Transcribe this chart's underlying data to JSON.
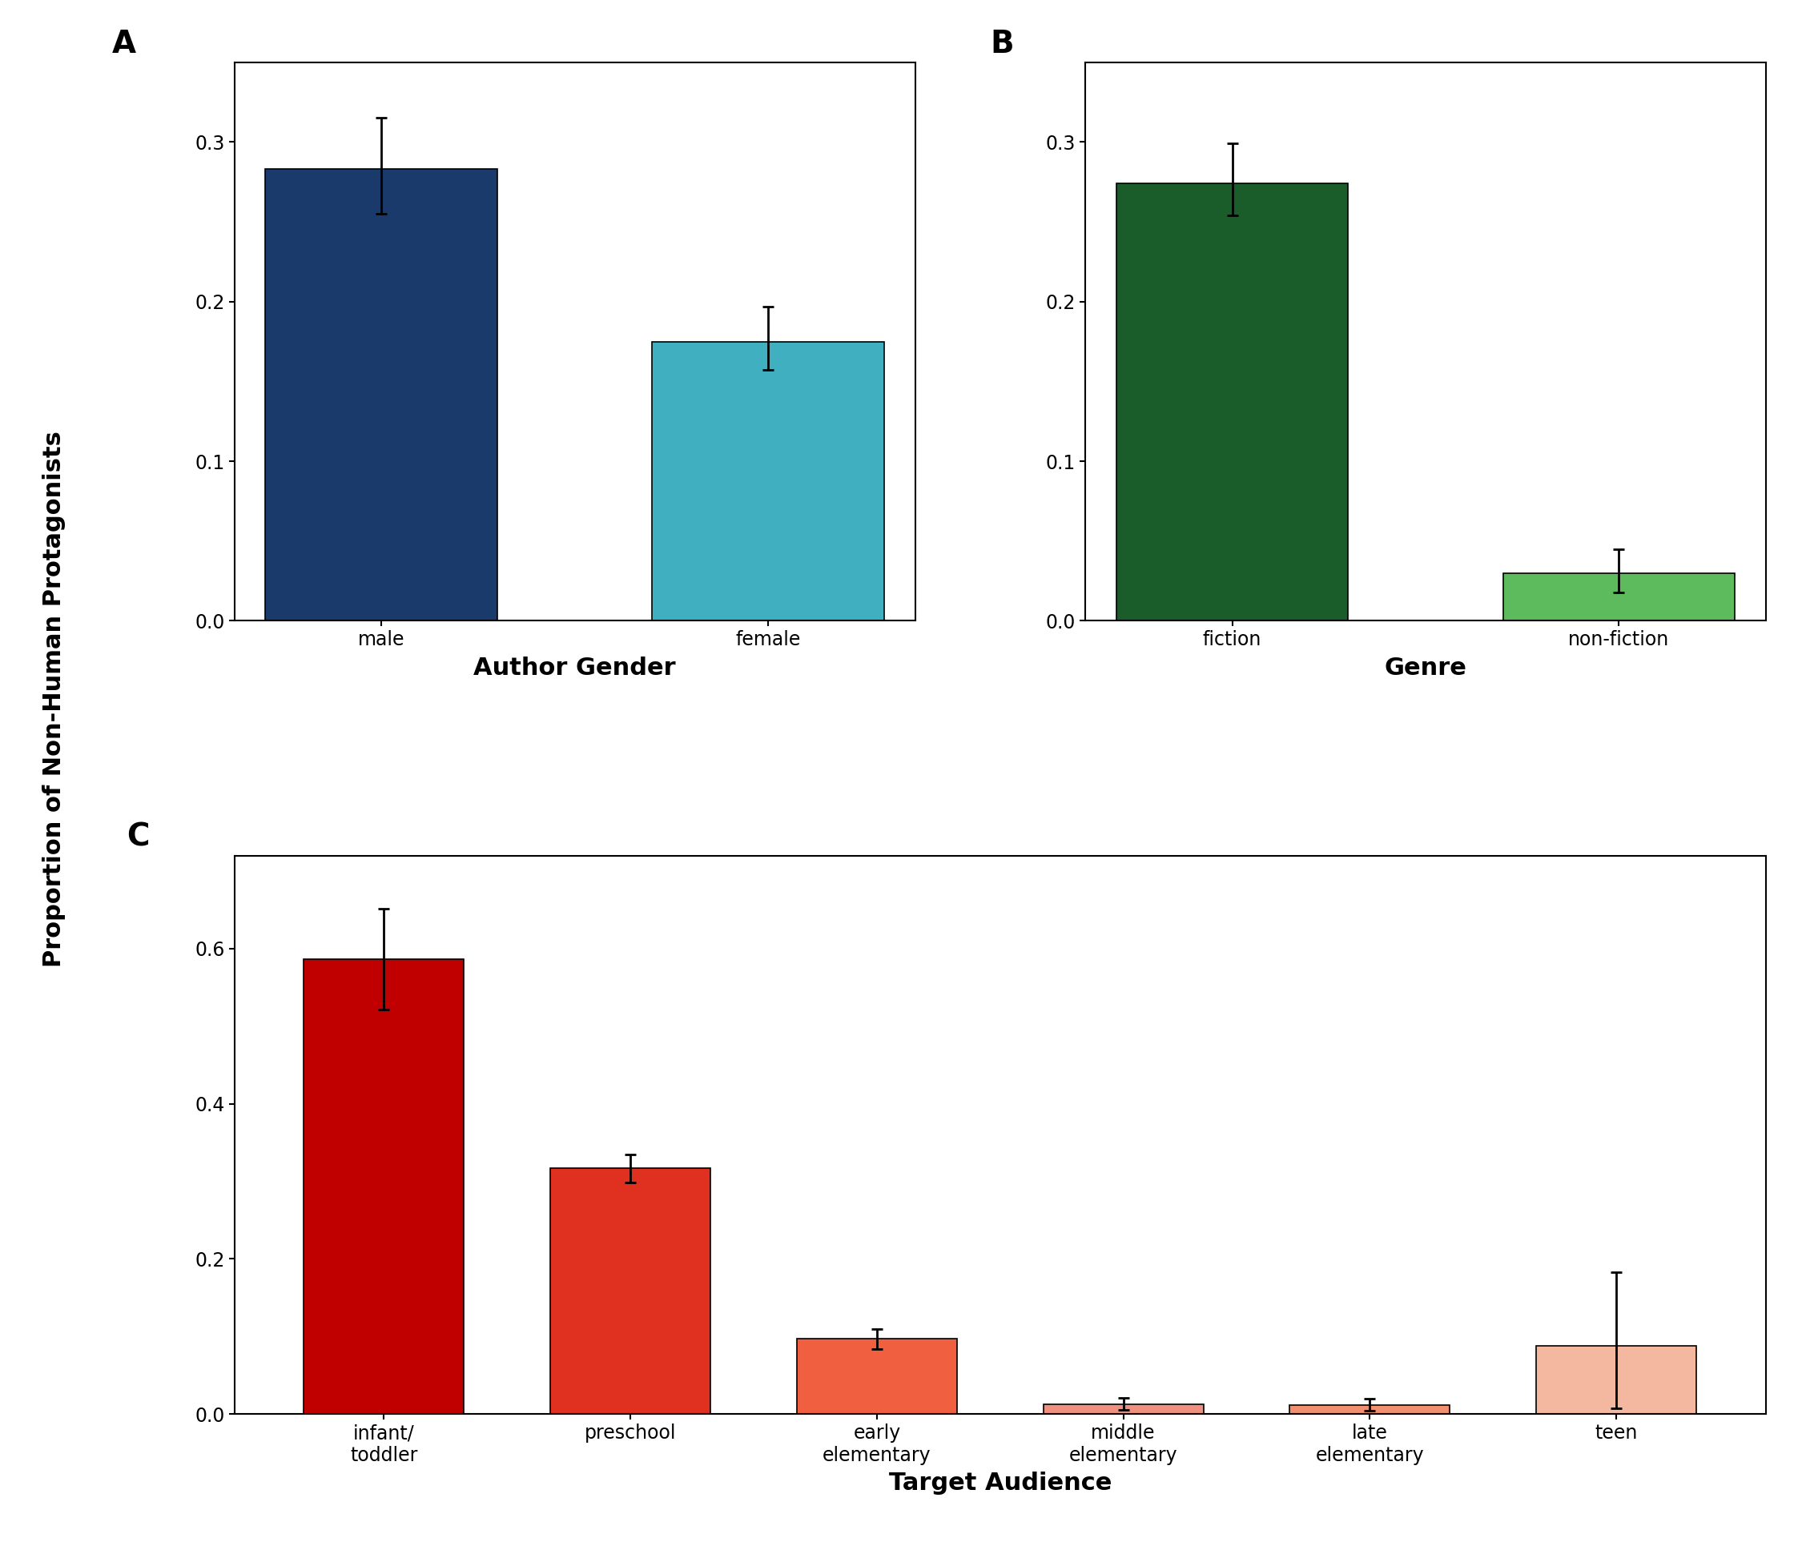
{
  "panel_A": {
    "categories": [
      "male",
      "female"
    ],
    "values": [
      0.283,
      0.175
    ],
    "errors_upper": [
      0.032,
      0.022
    ],
    "errors_lower": [
      0.028,
      0.018
    ],
    "colors": [
      "#1a3a6b",
      "#40b0c0"
    ],
    "xlabel": "Author Gender",
    "ylim": [
      0,
      0.35
    ],
    "yticks": [
      0.0,
      0.1,
      0.2,
      0.3
    ],
    "label": "A"
  },
  "panel_B": {
    "categories": [
      "fiction",
      "non-fiction"
    ],
    "values": [
      0.274,
      0.03
    ],
    "errors_upper": [
      0.025,
      0.015
    ],
    "errors_lower": [
      0.02,
      0.012
    ],
    "colors": [
      "#1a5c2a",
      "#5dba5d"
    ],
    "xlabel": "Genre",
    "ylim": [
      0,
      0.35
    ],
    "yticks": [
      0.0,
      0.1,
      0.2,
      0.3
    ],
    "label": "B"
  },
  "panel_C": {
    "categories": [
      "infant/\ntoddler",
      "preschool",
      "early\nelementary",
      "middle\nelementary",
      "late\nelementary",
      "teen"
    ],
    "values": [
      0.586,
      0.317,
      0.097,
      0.013,
      0.012,
      0.088
    ],
    "errors_upper": [
      0.065,
      0.018,
      0.013,
      0.008,
      0.008,
      0.095
    ],
    "errors_lower": [
      0.065,
      0.018,
      0.013,
      0.008,
      0.008,
      0.08
    ],
    "colors": [
      "#c00000",
      "#e03020",
      "#f06040",
      "#f09080",
      "#f09070",
      "#f4b8a0"
    ],
    "xlabel": "Target Audience",
    "ylim": [
      0,
      0.72
    ],
    "yticks": [
      0.0,
      0.2,
      0.4,
      0.6
    ],
    "label": "C"
  },
  "ylabel": "Proportion of Non-Human Protagonists",
  "background_color": "#ffffff",
  "bar_edgecolor": "black",
  "bar_linewidth": 1.2,
  "errorbar_color": "black",
  "errorbar_linewidth": 2.0,
  "errorbar_capsize": 5,
  "errorbar_capthick": 2.0,
  "label_fontsize": 28,
  "tick_fontsize": 17,
  "axis_label_fontsize": 22,
  "ylabel_fontsize": 22
}
